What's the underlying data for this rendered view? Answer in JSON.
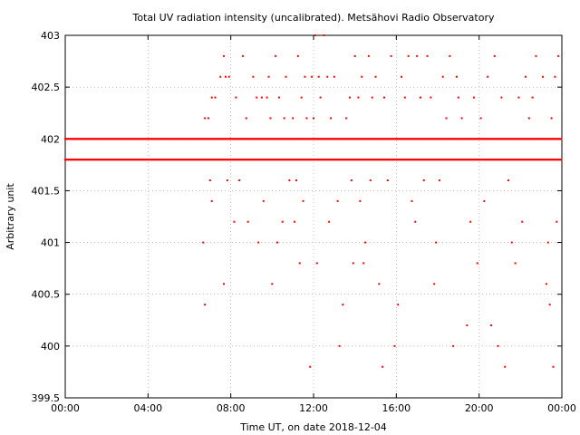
{
  "chart_data": {
    "type": "scatter",
    "title": "Total UV radiation intensity (uncalibrated). Metsähovi Radio Observatory",
    "xlabel": "Time UT, on date 2018-12-04",
    "ylabel": "Arbitrary unit",
    "xlim": [
      "00:00",
      "24:00"
    ],
    "ylim": [
      399.5,
      403
    ],
    "x_ticks": [
      "00:00",
      "04:00",
      "08:00",
      "12:00",
      "16:00",
      "20:00",
      "00:00"
    ],
    "y_ticks": [
      "399.5",
      "400",
      "400.5",
      "401",
      "401.5",
      "402",
      "402.5",
      "403"
    ],
    "y_tick_values": [
      399.5,
      400,
      400.5,
      401,
      401.5,
      402,
      402.5,
      403
    ],
    "grid": true,
    "marker_color": "#ff0000",
    "series": [
      {
        "description_levels": "dense baseline readings",
        "dense_bands": [
          {
            "y": 401.8,
            "from": "00:00",
            "to": "24:00"
          },
          {
            "y": 402.0,
            "from": "00:00",
            "to": "24:00"
          }
        ],
        "points": [
          [
            "06:40",
            401.0
          ],
          [
            "06:45",
            400.4
          ],
          [
            "06:45",
            402.2
          ],
          [
            "06:55",
            402.2
          ],
          [
            "07:00",
            401.6
          ],
          [
            "07:05",
            401.4
          ],
          [
            "07:05",
            402.4
          ],
          [
            "07:15",
            402.4
          ],
          [
            "07:30",
            402.6
          ],
          [
            "07:40",
            402.8
          ],
          [
            "07:40",
            400.6
          ],
          [
            "07:45",
            402.6
          ],
          [
            "07:50",
            401.6
          ],
          [
            "07:55",
            402.6
          ],
          [
            "08:10",
            401.2
          ],
          [
            "08:15",
            402.4
          ],
          [
            "08:25",
            401.6
          ],
          [
            "08:35",
            402.8
          ],
          [
            "08:45",
            402.2
          ],
          [
            "08:50",
            401.2
          ],
          [
            "09:05",
            402.6
          ],
          [
            "09:15",
            402.4
          ],
          [
            "09:20",
            401.0
          ],
          [
            "09:30",
            402.4
          ],
          [
            "09:35",
            401.4
          ],
          [
            "09:45",
            402.4
          ],
          [
            "09:50",
            402.6
          ],
          [
            "09:55",
            402.2
          ],
          [
            "10:00",
            400.6
          ],
          [
            "10:10",
            402.8
          ],
          [
            "10:15",
            401.0
          ],
          [
            "10:20",
            402.4
          ],
          [
            "10:30",
            401.2
          ],
          [
            "10:35",
            402.2
          ],
          [
            "10:40",
            402.6
          ],
          [
            "10:50",
            401.6
          ],
          [
            "11:00",
            402.2
          ],
          [
            "11:05",
            401.2
          ],
          [
            "11:10",
            401.6
          ],
          [
            "11:15",
            402.8
          ],
          [
            "11:20",
            400.8
          ],
          [
            "11:25",
            402.4
          ],
          [
            "11:30",
            401.4
          ],
          [
            "11:35",
            402.6
          ],
          [
            "11:40",
            402.2
          ],
          [
            "11:50",
            399.8
          ],
          [
            "11:55",
            402.6
          ],
          [
            "12:00",
            402.2
          ],
          [
            "12:05",
            403.0
          ],
          [
            "12:10",
            400.8
          ],
          [
            "12:15",
            402.6
          ],
          [
            "12:20",
            402.4
          ],
          [
            "12:30",
            403.0
          ],
          [
            "12:40",
            402.6
          ],
          [
            "12:45",
            401.2
          ],
          [
            "12:50",
            402.2
          ],
          [
            "13:00",
            402.6
          ],
          [
            "13:10",
            401.4
          ],
          [
            "13:15",
            400.0
          ],
          [
            "13:25",
            400.4
          ],
          [
            "13:35",
            402.2
          ],
          [
            "13:45",
            402.4
          ],
          [
            "13:50",
            401.6
          ],
          [
            "13:55",
            400.8
          ],
          [
            "14:00",
            402.8
          ],
          [
            "14:10",
            402.4
          ],
          [
            "14:15",
            401.4
          ],
          [
            "14:20",
            402.6
          ],
          [
            "14:25",
            400.8
          ],
          [
            "14:30",
            401.0
          ],
          [
            "14:40",
            402.8
          ],
          [
            "14:45",
            401.6
          ],
          [
            "14:50",
            402.4
          ],
          [
            "15:00",
            402.6
          ],
          [
            "15:10",
            400.6
          ],
          [
            "15:20",
            399.8
          ],
          [
            "15:25",
            402.4
          ],
          [
            "15:35",
            401.6
          ],
          [
            "15:45",
            402.8
          ],
          [
            "15:55",
            400.0
          ],
          [
            "16:05",
            400.4
          ],
          [
            "16:15",
            402.6
          ],
          [
            "16:25",
            402.4
          ],
          [
            "16:35",
            402.8
          ],
          [
            "16:45",
            401.4
          ],
          [
            "16:55",
            401.2
          ],
          [
            "17:00",
            402.8
          ],
          [
            "17:10",
            402.4
          ],
          [
            "17:20",
            401.6
          ],
          [
            "17:30",
            402.8
          ],
          [
            "17:40",
            402.4
          ],
          [
            "17:50",
            400.6
          ],
          [
            "17:55",
            401.0
          ],
          [
            "18:05",
            401.6
          ],
          [
            "18:15",
            402.6
          ],
          [
            "18:25",
            402.2
          ],
          [
            "18:35",
            402.8
          ],
          [
            "18:45",
            400.0
          ],
          [
            "18:55",
            402.6
          ],
          [
            "19:00",
            402.4
          ],
          [
            "19:10",
            402.2
          ],
          [
            "19:25",
            400.2
          ],
          [
            "19:35",
            401.2
          ],
          [
            "19:45",
            402.4
          ],
          [
            "19:55",
            400.8
          ],
          [
            "20:05",
            402.2
          ],
          [
            "20:15",
            401.4
          ],
          [
            "20:25",
            402.6
          ],
          [
            "20:35",
            400.2
          ],
          [
            "20:45",
            402.8
          ],
          [
            "20:55",
            400.0
          ],
          [
            "21:05",
            402.4
          ],
          [
            "21:15",
            399.8
          ],
          [
            "21:25",
            401.6
          ],
          [
            "21:35",
            401.0
          ],
          [
            "21:45",
            400.8
          ],
          [
            "21:55",
            402.4
          ],
          [
            "22:05",
            401.2
          ],
          [
            "22:15",
            402.6
          ],
          [
            "22:25",
            402.2
          ],
          [
            "22:35",
            402.4
          ],
          [
            "22:45",
            402.8
          ],
          [
            "23:05",
            402.6
          ],
          [
            "23:15",
            400.6
          ],
          [
            "23:20",
            401.0
          ],
          [
            "23:25",
            400.4
          ],
          [
            "23:30",
            402.2
          ],
          [
            "23:35",
            399.8
          ],
          [
            "23:40",
            402.6
          ],
          [
            "23:45",
            401.2
          ],
          [
            "23:50",
            402.8
          ]
        ]
      }
    ]
  }
}
